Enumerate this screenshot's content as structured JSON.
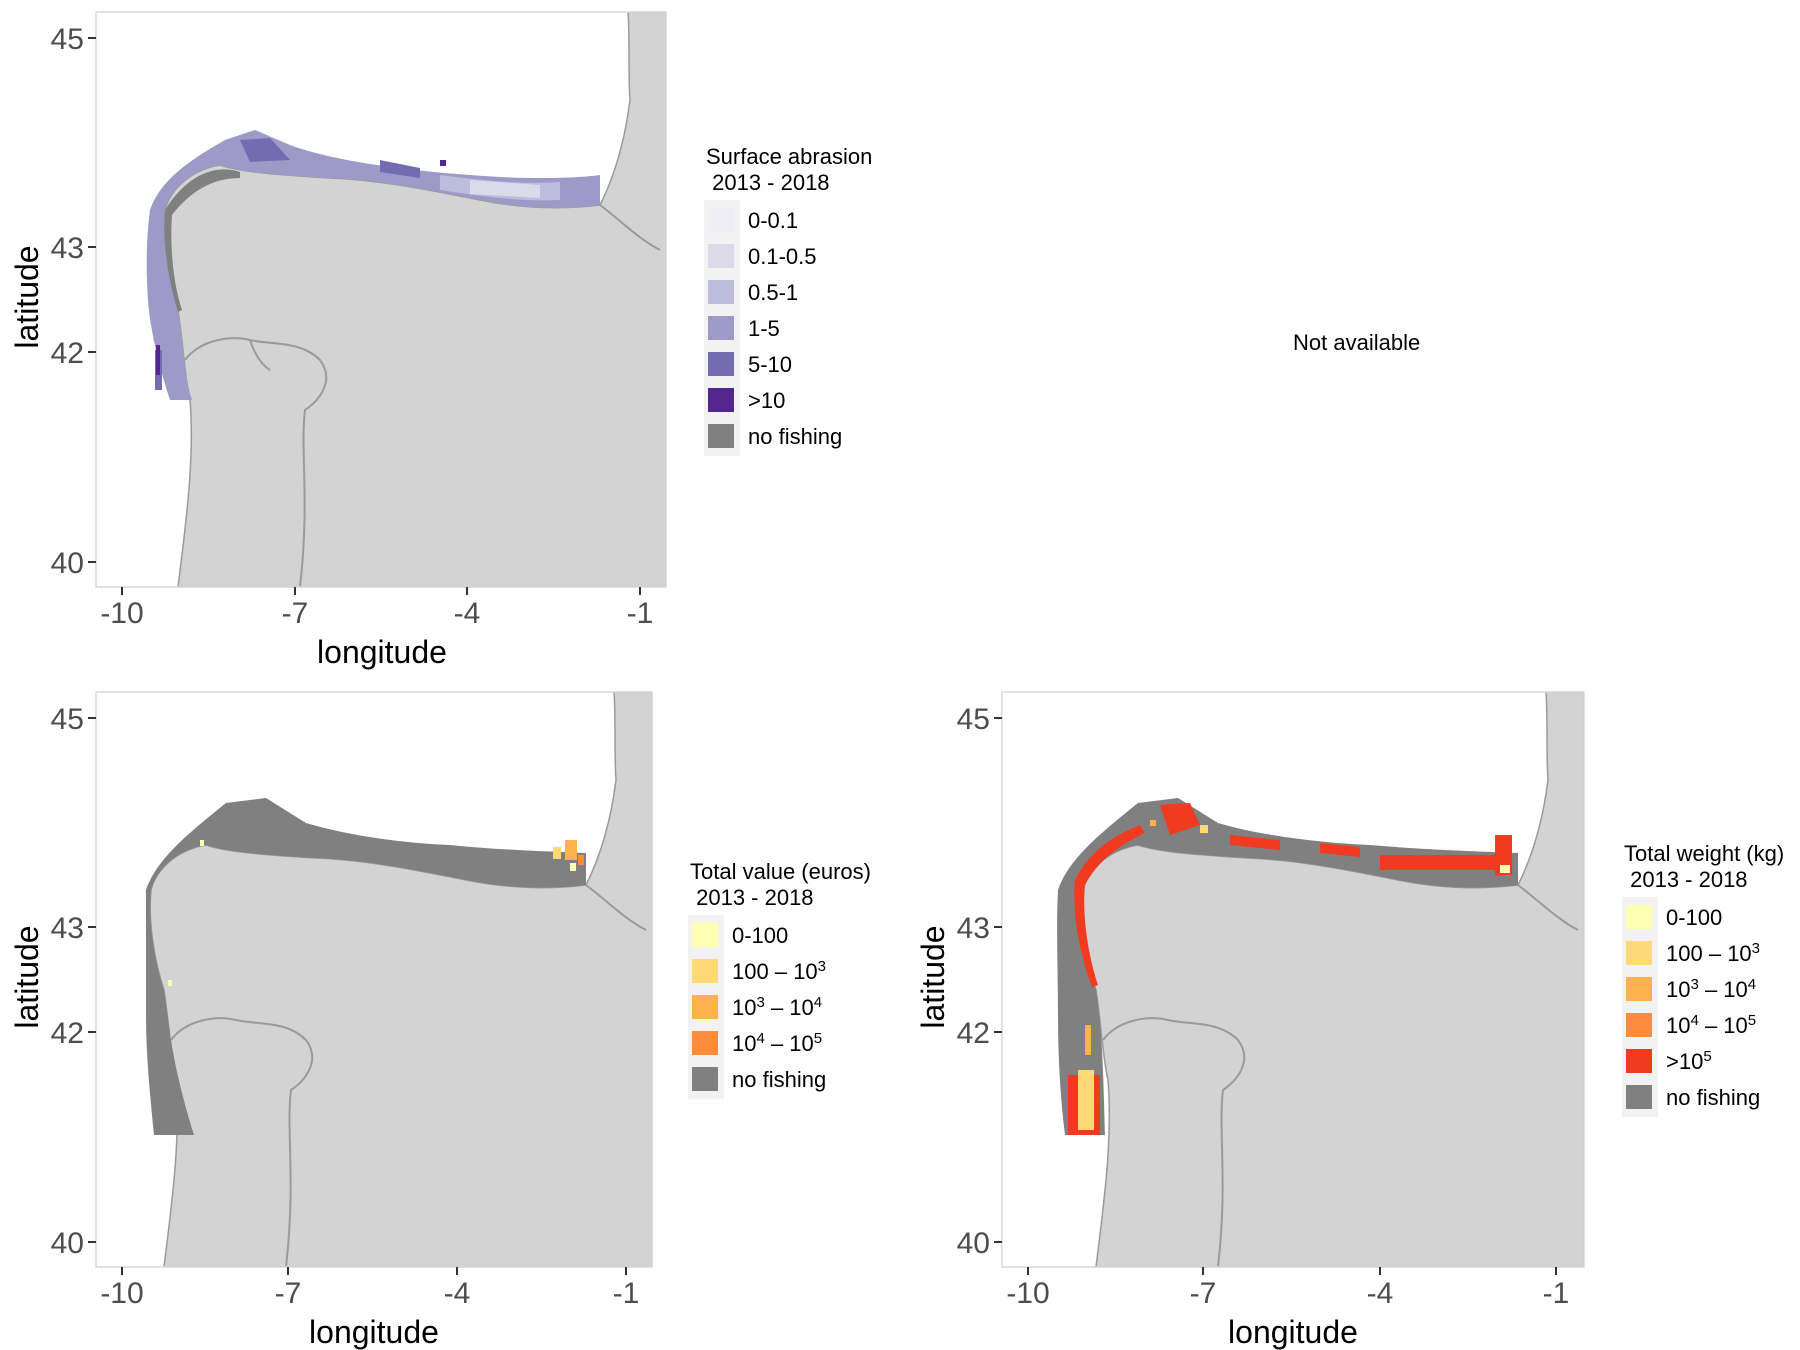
{
  "panels": [
    {
      "id": "abrasion",
      "xlabel": "longitude",
      "ylabel": "latitude",
      "xticks": [
        "-10",
        "-7",
        "-4",
        "-1"
      ],
      "yticks": [
        "40",
        "42",
        "43",
        "45"
      ],
      "legend": {
        "title_line1": "Surface abrasion",
        "title_line2": " 2013 - 2018",
        "items": [
          {
            "label": "0-0.1",
            "color": "#efedf5"
          },
          {
            "label": "0.1-0.5",
            "color": "#dadaeb"
          },
          {
            "label": "0.5-1",
            "color": "#bcbddc"
          },
          {
            "label": "1-5",
            "color": "#9e9ac8"
          },
          {
            "label": "5-10",
            "color": "#756bb1"
          },
          {
            "label": ">10",
            "color": "#54278f"
          },
          {
            "label": "no fishing",
            "color": "#808080"
          }
        ]
      }
    },
    {
      "id": "value",
      "xlabel": "longitude",
      "ylabel": "latitude",
      "xticks": [
        "-10",
        "-7",
        "-4",
        "-1"
      ],
      "yticks": [
        "40",
        "42",
        "43",
        "45"
      ],
      "legend": {
        "title_line1": "Total value (euros)",
        "title_line2": " 2013 - 2018",
        "items": [
          {
            "label": "0-100",
            "color": "#ffffb2"
          },
          {
            "base1": "100",
            "base2": "10",
            "exp2": "3",
            "color": "#fed976"
          },
          {
            "base1": "10",
            "exp1": "3",
            "base2": "10",
            "exp2": "4",
            "color": "#feb24c"
          },
          {
            "base1": "10",
            "exp1": "4",
            "base2": "10",
            "exp2": "5",
            "color": "#fd8d3c"
          },
          {
            "label": "no fishing",
            "color": "#808080"
          }
        ]
      }
    },
    {
      "id": "weight",
      "xlabel": "longitude",
      "ylabel": "latitude",
      "xticks": [
        "-10",
        "-7",
        "-4",
        "-1"
      ],
      "yticks": [
        "40",
        "42",
        "43",
        "45"
      ],
      "legend": {
        "title_line1": "Total weight (kg)",
        "title_line2": " 2013 - 2018",
        "items": [
          {
            "label": "0-100",
            "color": "#ffffb2"
          },
          {
            "base1": "100",
            "base2": "10",
            "exp2": "3",
            "color": "#fed976"
          },
          {
            "base1": "10",
            "exp1": "3",
            "base2": "10",
            "exp2": "4",
            "color": "#feb24c"
          },
          {
            "base1": "10",
            "exp1": "4",
            "base2": "10",
            "exp2": "5",
            "color": "#fd8d3c"
          },
          {
            "prefix": ">",
            "base1": "10",
            "exp1": "5",
            "color": "#f03b20"
          },
          {
            "label": "no fishing",
            "color": "#808080"
          }
        ]
      }
    }
  ],
  "not_available": "Not available",
  "colors": {
    "land": "#d3d3d3",
    "border": "#9a9a9a",
    "no_fishing": "#808080",
    "panel_border": "#d9d9d9"
  }
}
